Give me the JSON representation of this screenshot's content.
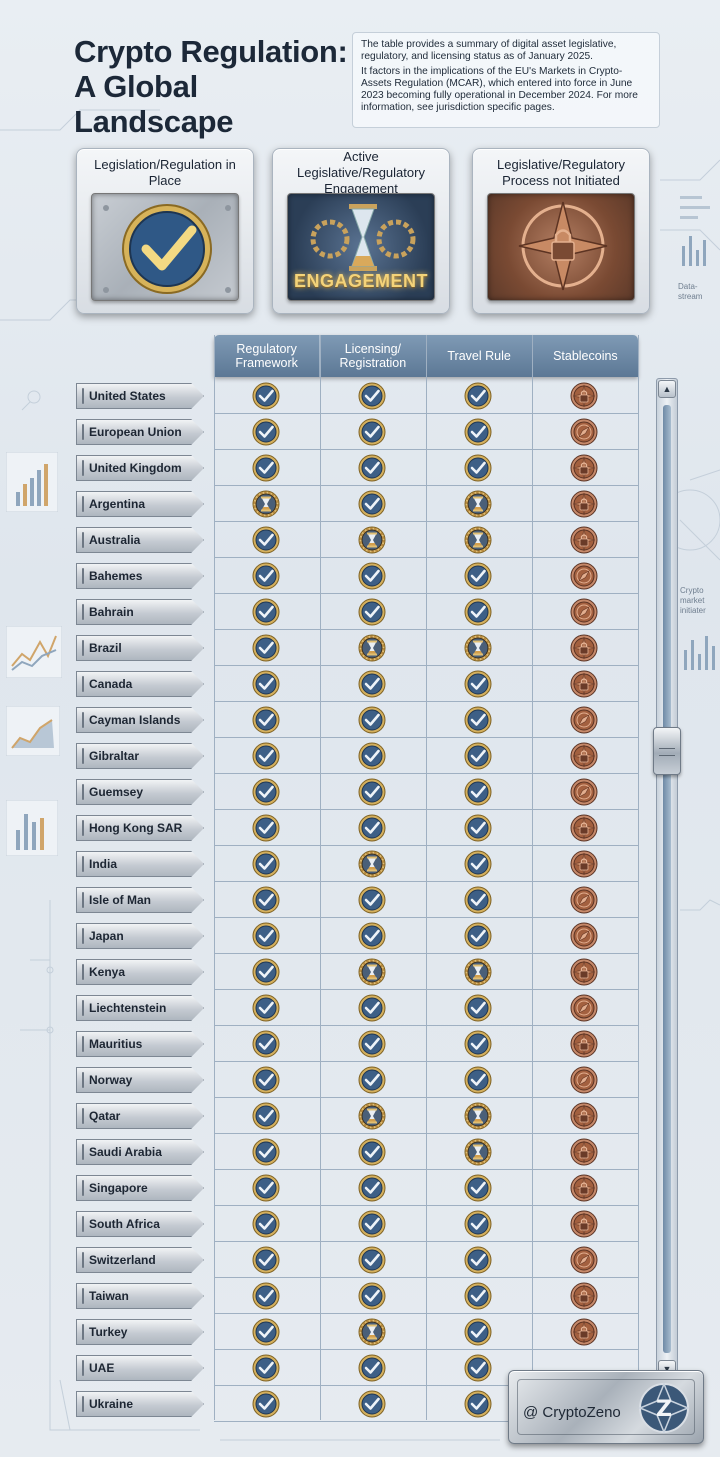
{
  "header": {
    "title": "Crypto Regulation: A Global Landscape",
    "description_1": "The table provides a summary of digital asset legislative, regulatory, and licensing status as of January 2025.",
    "description_2": "It factors in the implications of the EU's Markets in Crypto-Assets Regulation (MCAR), which entered into force in June 2023 becoming fully operational in December 2024. For more information, see jurisdiction specific pages."
  },
  "legend": [
    {
      "title": "Legislation/Regulation in Place",
      "icon": "check-icon",
      "status": "in_place"
    },
    {
      "title": "Active Legislative/Regulatory Engagement",
      "icon": "hourglass-icon",
      "status": "engagement",
      "badge": "ENGAGEMENT"
    },
    {
      "title": "Legislative/Regulatory Process not Initiated",
      "icon": "padlock-compass-icon",
      "status": "not_initiated"
    }
  ],
  "columns": [
    "Regulatory Framework",
    "Licensing/ Registration",
    "Travel Rule",
    "Stablecoins"
  ],
  "colors": {
    "in_place": "#3d5f86",
    "engagement": "#b8893e",
    "not_initiated": "#a3603f",
    "header": "#6f8aa6"
  },
  "rows": [
    {
      "country": "United States",
      "status": [
        "C",
        "C",
        "C",
        "L"
      ]
    },
    {
      "country": "European Union",
      "status": [
        "C",
        "C",
        "C",
        "P"
      ]
    },
    {
      "country": "United Kingdom",
      "status": [
        "C",
        "C",
        "C",
        "L"
      ]
    },
    {
      "country": "Argentina",
      "status": [
        "H",
        "C",
        "H",
        "L"
      ]
    },
    {
      "country": "Australia",
      "status": [
        "C",
        "H",
        "H",
        "L"
      ]
    },
    {
      "country": "Bahemes",
      "status": [
        "C",
        "C",
        "C",
        "P"
      ]
    },
    {
      "country": "Bahrain",
      "status": [
        "C",
        "C",
        "C",
        "P"
      ]
    },
    {
      "country": "Brazil",
      "status": [
        "C",
        "H",
        "H",
        "L"
      ]
    },
    {
      "country": "Canada",
      "status": [
        "C",
        "C",
        "C",
        "L"
      ]
    },
    {
      "country": "Cayman Islands",
      "status": [
        "C",
        "C",
        "C",
        "P"
      ]
    },
    {
      "country": "Gibraltar",
      "status": [
        "C",
        "C",
        "C",
        "L"
      ]
    },
    {
      "country": "Guemsey",
      "status": [
        "C",
        "C",
        "C",
        "P"
      ]
    },
    {
      "country": "Hong Kong SAR",
      "status": [
        "C",
        "C",
        "C",
        "L"
      ]
    },
    {
      "country": "India",
      "status": [
        "C",
        "H",
        "C",
        "L"
      ]
    },
    {
      "country": "Isle of Man",
      "status": [
        "C",
        "C",
        "C",
        "P"
      ]
    },
    {
      "country": "Japan",
      "status": [
        "C",
        "C",
        "C",
        "P"
      ]
    },
    {
      "country": "Kenya",
      "status": [
        "C",
        "H",
        "H",
        "L"
      ]
    },
    {
      "country": "Liechtenstein",
      "status": [
        "C",
        "C",
        "C",
        "P"
      ]
    },
    {
      "country": "Mauritius",
      "status": [
        "C",
        "C",
        "C",
        "L"
      ]
    },
    {
      "country": "Norway",
      "status": [
        "C",
        "C",
        "C",
        "P"
      ]
    },
    {
      "country": "Qatar",
      "status": [
        "C",
        "H",
        "H",
        "L"
      ]
    },
    {
      "country": "Saudi Arabia",
      "status": [
        "C",
        "C",
        "H",
        "L"
      ]
    },
    {
      "country": "Singapore",
      "status": [
        "C",
        "C",
        "C",
        "L"
      ]
    },
    {
      "country": "South Africa",
      "status": [
        "C",
        "C",
        "C",
        "L"
      ]
    },
    {
      "country": "Switzerland",
      "status": [
        "C",
        "C",
        "C",
        "P"
      ]
    },
    {
      "country": "Taiwan",
      "status": [
        "C",
        "C",
        "C",
        "L"
      ]
    },
    {
      "country": "Turkey",
      "status": [
        "C",
        "H",
        "C",
        "L"
      ]
    },
    {
      "country": "UAE",
      "status": [
        "C",
        "C",
        "C",
        ""
      ]
    },
    {
      "country": "Ukraine",
      "status": [
        "C",
        "C",
        "C",
        ""
      ]
    }
  ],
  "brand": {
    "handle": "@ CryptoZeno",
    "logo": "Z"
  },
  "side_labels": {
    "right_1": "Crypto market initiater",
    "right_top": "Data-stream"
  }
}
